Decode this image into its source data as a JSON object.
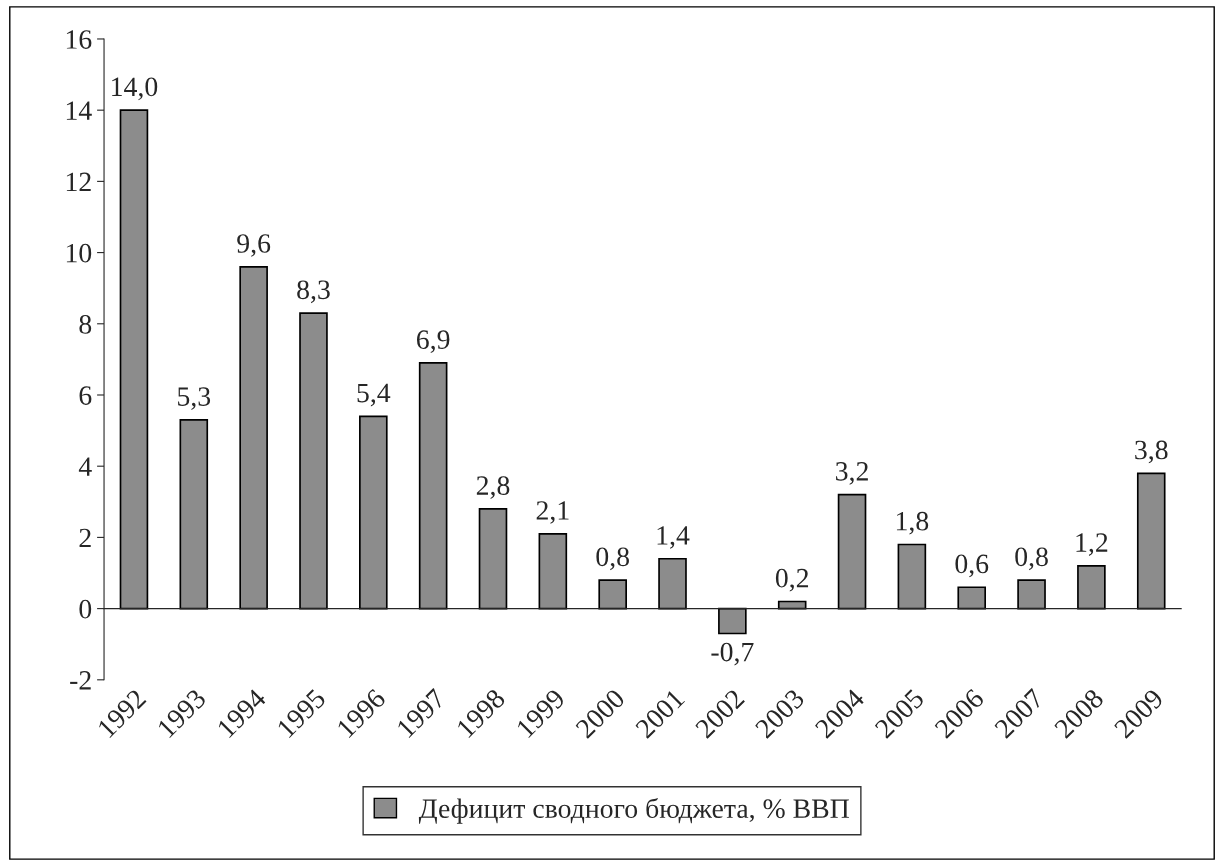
{
  "chart_data": {
    "type": "bar",
    "categories": [
      "1992",
      "1993",
      "1994",
      "1995",
      "1996",
      "1997",
      "1998",
      "1999",
      "2000",
      "2001",
      "2002",
      "2003",
      "2004",
      "2005",
      "2006",
      "2007",
      "2008",
      "2009"
    ],
    "series": [
      {
        "name": "Дефицит сводного бюджета, % ВВП",
        "color": "#8c8c8c",
        "values": [
          14.0,
          5.3,
          9.6,
          8.3,
          5.4,
          6.9,
          2.8,
          2.1,
          0.8,
          1.4,
          -0.7,
          0.2,
          3.2,
          1.8,
          0.6,
          0.8,
          1.2,
          3.8
        ],
        "value_labels": [
          "14,0",
          "5,3",
          "9,6",
          "8,3",
          "5,4",
          "6,9",
          "2,8",
          "2,1",
          "0,8",
          "1,4",
          "-0,7",
          "0,2",
          "3,2",
          "1,8",
          "0,6",
          "0,8",
          "1,2",
          "3,8"
        ]
      }
    ],
    "ylim": [
      -2,
      16
    ],
    "yticks": [
      -2,
      0,
      2,
      4,
      6,
      8,
      10,
      12,
      14,
      16
    ],
    "legend": "bottom"
  }
}
